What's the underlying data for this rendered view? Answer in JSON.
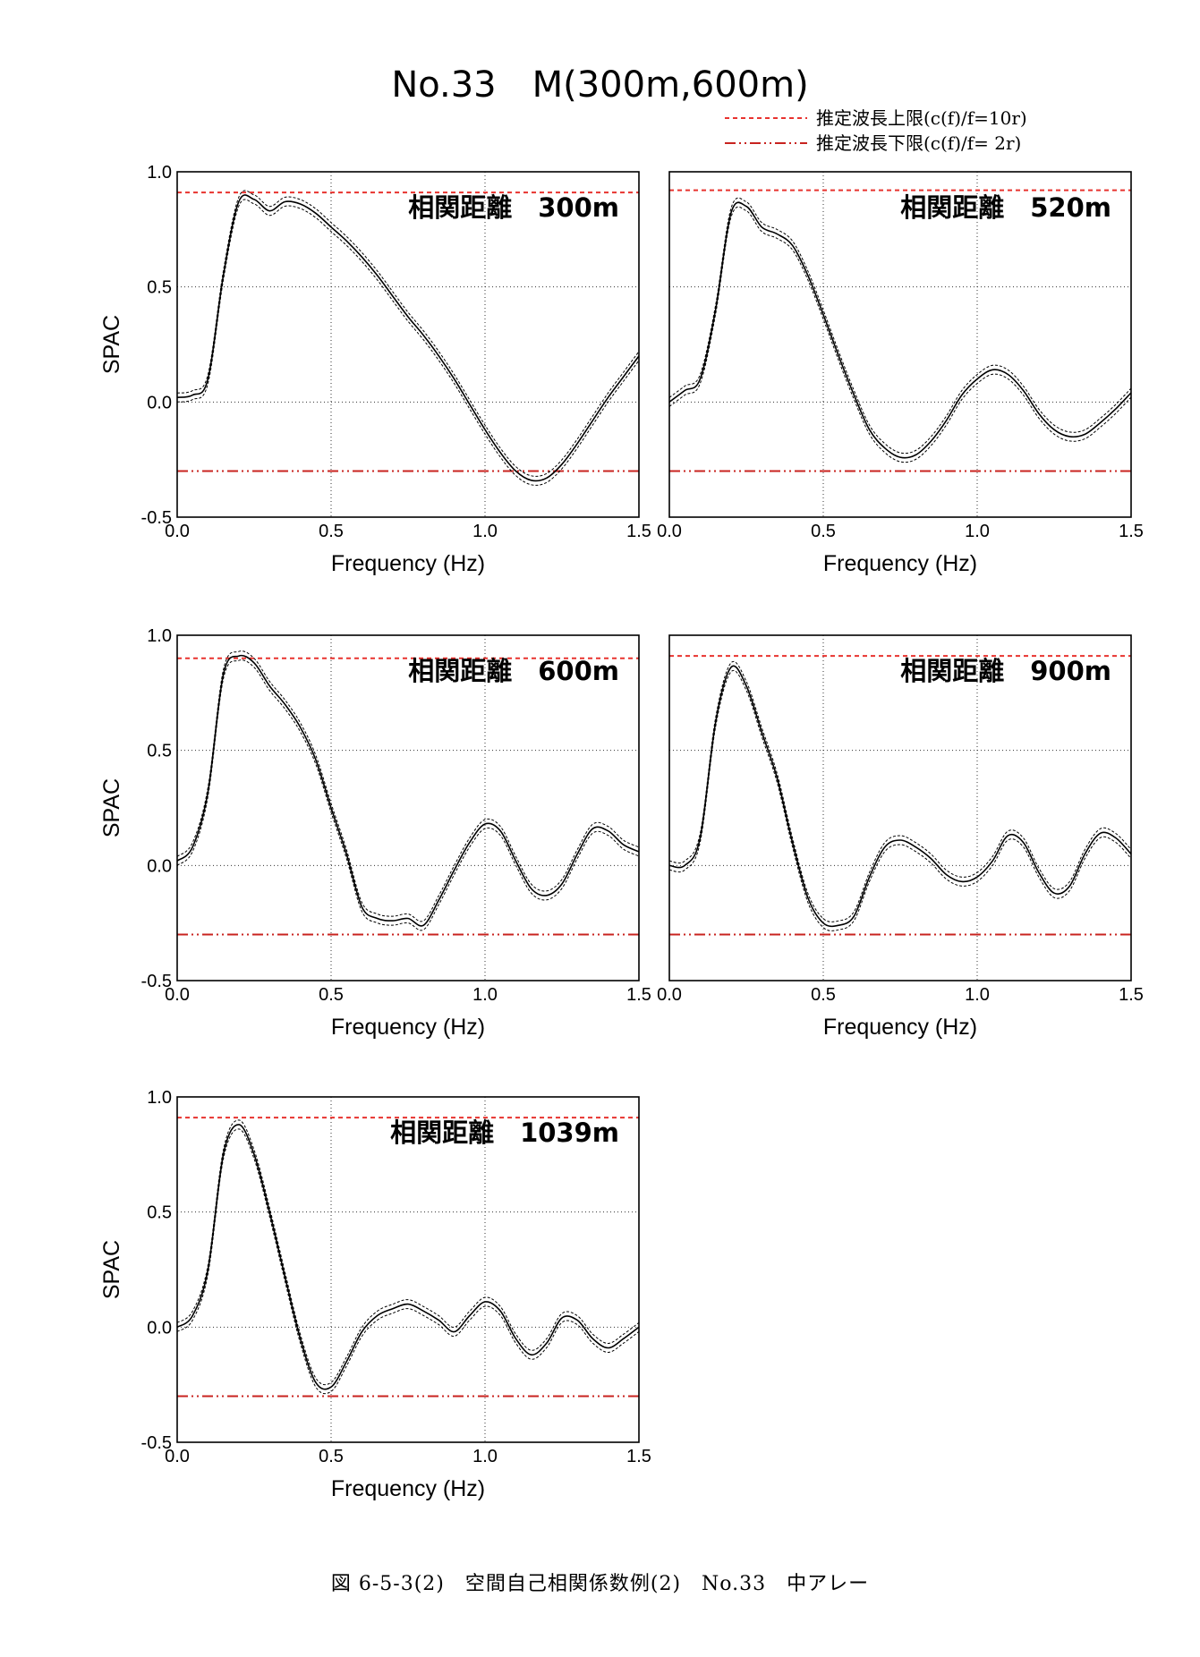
{
  "title": "No.33　M(300m,600m)",
  "legend": [
    {
      "label": "推定波長上限(c(f)/f=10r)",
      "style": "dashed",
      "color": "#e8332f"
    },
    {
      "label": "推定波長下限(c(f)/f= 2r)",
      "style": "dashdot",
      "color": "#c8231f"
    }
  ],
  "caption": "図 6-5-3(2)　空間自己相関係数例(2)　No.33　中アレー",
  "chart_data": [
    {
      "type": "line",
      "annotation": "相関距離　300m",
      "xlabel": "Frequency (Hz)",
      "ylabel": "SPAC",
      "xlim": [
        0,
        1.5
      ],
      "ylim": [
        -0.5,
        1.0
      ],
      "xticks": [
        "0.0",
        "0.5",
        "1.0",
        "1.5"
      ],
      "yticks": [
        "1.0",
        "0.5",
        "0.0",
        "-0.5"
      ],
      "upper_limit": 0.91,
      "lower_limit": -0.3,
      "x": [
        0,
        0.05,
        0.1,
        0.15,
        0.2,
        0.25,
        0.3,
        0.35,
        0.4,
        0.45,
        0.5,
        0.55,
        0.6,
        0.65,
        0.7,
        0.75,
        0.8,
        0.85,
        0.9,
        0.95,
        1.0,
        1.05,
        1.1,
        1.15,
        1.2,
        1.25,
        1.3,
        1.35,
        1.4,
        1.45,
        1.5
      ],
      "series": [
        {
          "values": [
            0.02,
            0.03,
            0.1,
            0.55,
            0.87,
            0.88,
            0.83,
            0.87,
            0.86,
            0.82,
            0.76,
            0.7,
            0.63,
            0.55,
            0.46,
            0.37,
            0.29,
            0.2,
            0.1,
            -0.01,
            -0.12,
            -0.22,
            -0.3,
            -0.34,
            -0.33,
            -0.27,
            -0.18,
            -0.08,
            0.02,
            0.11,
            0.2
          ]
        }
      ]
    },
    {
      "type": "line",
      "annotation": "相関距離　520m",
      "xlabel": "Frequency (Hz)",
      "ylabel": "",
      "xlim": [
        0,
        1.5
      ],
      "ylim": [
        -0.5,
        1.0
      ],
      "xticks": [
        "0.0",
        "0.5",
        "1.0",
        "1.5"
      ],
      "yticks": [],
      "upper_limit": 0.92,
      "lower_limit": -0.3,
      "x": [
        0,
        0.05,
        0.1,
        0.15,
        0.2,
        0.25,
        0.3,
        0.35,
        0.4,
        0.45,
        0.5,
        0.55,
        0.6,
        0.65,
        0.7,
        0.75,
        0.8,
        0.85,
        0.9,
        0.95,
        1.0,
        1.05,
        1.1,
        1.15,
        1.2,
        1.25,
        1.3,
        1.35,
        1.4,
        1.45,
        1.5
      ],
      "series": [
        {
          "values": [
            0.0,
            0.05,
            0.1,
            0.4,
            0.82,
            0.85,
            0.76,
            0.73,
            0.68,
            0.55,
            0.38,
            0.2,
            0.03,
            -0.12,
            -0.2,
            -0.24,
            -0.23,
            -0.17,
            -0.08,
            0.03,
            0.1,
            0.14,
            0.12,
            0.05,
            -0.05,
            -0.12,
            -0.15,
            -0.14,
            -0.09,
            -0.03,
            0.04
          ]
        }
      ]
    },
    {
      "type": "line",
      "annotation": "相関距離　600m",
      "xlabel": "Frequency (Hz)",
      "ylabel": "SPAC",
      "xlim": [
        0,
        1.5
      ],
      "ylim": [
        -0.5,
        1.0
      ],
      "xticks": [
        "0.0",
        "0.5",
        "1.0",
        "1.5"
      ],
      "yticks": [
        "1.0",
        "0.5",
        "0.0",
        "-0.5"
      ],
      "upper_limit": 0.9,
      "lower_limit": -0.3,
      "x": [
        0,
        0.05,
        0.1,
        0.15,
        0.2,
        0.25,
        0.3,
        0.35,
        0.4,
        0.45,
        0.5,
        0.55,
        0.6,
        0.65,
        0.7,
        0.75,
        0.8,
        0.85,
        0.9,
        0.95,
        1.0,
        1.05,
        1.1,
        1.15,
        1.2,
        1.25,
        1.3,
        1.35,
        1.4,
        1.45,
        1.5
      ],
      "series": [
        {
          "values": [
            0.02,
            0.08,
            0.32,
            0.83,
            0.91,
            0.88,
            0.78,
            0.7,
            0.6,
            0.46,
            0.25,
            0.05,
            -0.18,
            -0.23,
            -0.24,
            -0.23,
            -0.26,
            -0.15,
            -0.02,
            0.1,
            0.18,
            0.15,
            0.02,
            -0.1,
            -0.13,
            -0.08,
            0.05,
            0.16,
            0.15,
            0.09,
            0.06
          ]
        }
      ]
    },
    {
      "type": "line",
      "annotation": "相関距離　900m",
      "xlabel": "Frequency (Hz)",
      "ylabel": "",
      "xlim": [
        0,
        1.5
      ],
      "ylim": [
        -0.5,
        1.0
      ],
      "xticks": [
        "0.0",
        "0.5",
        "1.0",
        "1.5"
      ],
      "yticks": [],
      "upper_limit": 0.91,
      "lower_limit": -0.3,
      "x": [
        0,
        0.05,
        0.1,
        0.15,
        0.2,
        0.25,
        0.3,
        0.35,
        0.4,
        0.45,
        0.5,
        0.55,
        0.6,
        0.65,
        0.7,
        0.75,
        0.8,
        0.85,
        0.9,
        0.95,
        1.0,
        1.05,
        1.1,
        1.15,
        1.2,
        1.25,
        1.3,
        1.35,
        1.4,
        1.45,
        1.5
      ],
      "series": [
        {
          "values": [
            0.0,
            0.0,
            0.12,
            0.62,
            0.86,
            0.78,
            0.58,
            0.38,
            0.1,
            -0.14,
            -0.25,
            -0.26,
            -0.22,
            -0.05,
            0.08,
            0.11,
            0.08,
            0.03,
            -0.04,
            -0.07,
            -0.05,
            0.02,
            0.13,
            0.1,
            -0.03,
            -0.12,
            -0.09,
            0.05,
            0.14,
            0.12,
            0.05
          ]
        }
      ]
    },
    {
      "type": "line",
      "annotation": "相関距離　1039m",
      "xlabel": "Frequency (Hz)",
      "ylabel": "SPAC",
      "xlim": [
        0,
        1.5
      ],
      "ylim": [
        -0.5,
        1.0
      ],
      "xticks": [
        "0.0",
        "0.5",
        "1.0",
        "1.5"
      ],
      "yticks": [
        "1.0",
        "0.5",
        "0.0",
        "-0.5"
      ],
      "upper_limit": 0.91,
      "lower_limit": -0.3,
      "x": [
        0,
        0.05,
        0.1,
        0.15,
        0.2,
        0.25,
        0.3,
        0.35,
        0.4,
        0.45,
        0.5,
        0.55,
        0.6,
        0.65,
        0.7,
        0.75,
        0.8,
        0.85,
        0.9,
        0.95,
        1.0,
        1.05,
        1.1,
        1.15,
        1.2,
        1.25,
        1.3,
        1.35,
        1.4,
        1.45,
        1.5
      ],
      "series": [
        {
          "values": [
            0.0,
            0.05,
            0.25,
            0.75,
            0.88,
            0.75,
            0.5,
            0.22,
            -0.05,
            -0.24,
            -0.26,
            -0.15,
            -0.02,
            0.05,
            0.08,
            0.1,
            0.07,
            0.03,
            -0.02,
            0.05,
            0.11,
            0.07,
            -0.05,
            -0.12,
            -0.07,
            0.04,
            0.03,
            -0.05,
            -0.09,
            -0.05,
            0.0
          ]
        }
      ]
    }
  ]
}
